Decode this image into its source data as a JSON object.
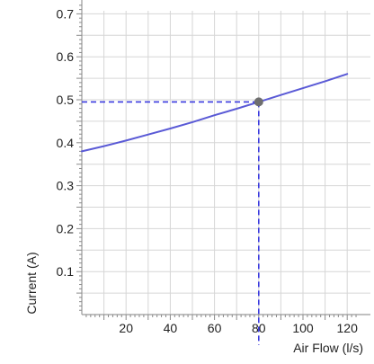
{
  "chart_data": {
    "type": "line",
    "xlabel": "Air Flow (l/s)",
    "ylabel": "Current (A)",
    "xlim": [
      0,
      125
    ],
    "ylim": [
      0,
      0.7
    ],
    "x_ticks": [
      20,
      40,
      60,
      80,
      100,
      120
    ],
    "x_tick_labels": [
      "20",
      "40",
      "60",
      "80",
      "100",
      "120"
    ],
    "y_ticks": [
      0.1,
      0.2,
      0.3,
      0.4,
      0.5,
      0.6,
      0.7
    ],
    "y_tick_labels": [
      "0.1",
      "0.2",
      "0.3",
      "0.4",
      "0.5",
      "0.6",
      "0.7"
    ],
    "grid": true,
    "series": [
      {
        "x": [
          0,
          10,
          20,
          30,
          40,
          50,
          60,
          70,
          80,
          90,
          100,
          110,
          120
        ],
        "y": [
          0.38,
          0.392,
          0.405,
          0.419,
          0.433,
          0.448,
          0.464,
          0.479,
          0.495,
          0.511,
          0.527,
          0.543,
          0.56
        ],
        "color": "#5a5ad6"
      }
    ],
    "highlight_point": {
      "x": 80,
      "y": 0.495,
      "color": "#6e6e6e"
    },
    "guide_color": "#3a3adf"
  }
}
